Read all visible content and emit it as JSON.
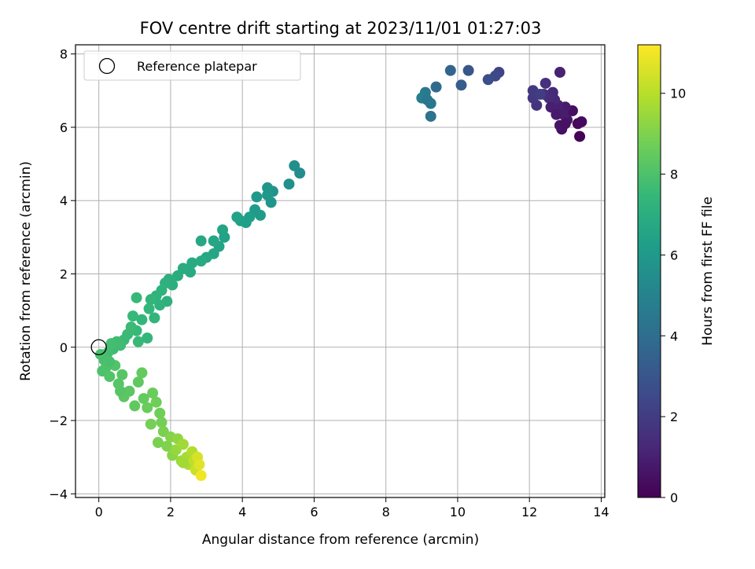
{
  "chart_data": {
    "type": "scatter",
    "title": "FOV centre drift starting at 2023/11/01 01:27:03",
    "xlabel": "Angular distance from reference (arcmin)",
    "ylabel": "Rotation from reference (arcmin)",
    "xlim": [
      -0.65,
      14.1
    ],
    "ylim": [
      -4.1,
      8.25
    ],
    "xticks": [
      0,
      2,
      4,
      6,
      8,
      10,
      12,
      14
    ],
    "yticks": [
      -4,
      -2,
      0,
      2,
      4,
      6,
      8
    ],
    "xtick_labels": [
      "0",
      "2",
      "4",
      "6",
      "8",
      "10",
      "12",
      "14"
    ],
    "ytick_labels": [
      "−4",
      "−2",
      "0",
      "2",
      "4",
      "6",
      "8"
    ],
    "grid": true,
    "legend": {
      "placement": "top-left",
      "entries": [
        "Reference platepar"
      ]
    },
    "reference_point": {
      "x": 0,
      "y": 0,
      "marker": "open-circle",
      "color": "#000000"
    },
    "colorbar": {
      "label": "Hours from first FF file",
      "range": [
        0,
        11.2
      ],
      "ticks": [
        0,
        2,
        4,
        6,
        8,
        10
      ],
      "tick_labels": [
        "0",
        "2",
        "4",
        "6",
        "8",
        "10"
      ],
      "colormap": "viridis",
      "stops": [
        "#440154",
        "#482878",
        "#3e4989",
        "#31688e",
        "#26828e",
        "#1f9e89",
        "#35b779",
        "#6ece58",
        "#b5de2b",
        "#fde725"
      ]
    },
    "points": [
      [
        13.4,
        5.75,
        0.1
      ],
      [
        13.35,
        6.1,
        0.2
      ],
      [
        13.45,
        6.15,
        0.3
      ],
      [
        13.2,
        6.45,
        0.4
      ],
      [
        12.9,
        5.95,
        0.5
      ],
      [
        12.85,
        6.05,
        0.6
      ],
      [
        13.05,
        6.2,
        0.7
      ],
      [
        13.0,
        6.55,
        0.8
      ],
      [
        12.95,
        6.35,
        0.9
      ],
      [
        12.8,
        6.6,
        1.0
      ],
      [
        12.85,
        7.5,
        1.1
      ],
      [
        12.7,
        6.75,
        1.2
      ],
      [
        12.65,
        6.95,
        1.3
      ],
      [
        12.55,
        6.8,
        1.4
      ],
      [
        12.4,
        6.9,
        1.5
      ],
      [
        12.45,
        7.2,
        1.6
      ],
      [
        12.2,
        6.6,
        1.7
      ],
      [
        12.1,
        6.8,
        1.8
      ],
      [
        12.1,
        7.0,
        1.9
      ],
      [
        12.3,
        6.9,
        2.0
      ],
      [
        11.15,
        7.5,
        2.3
      ],
      [
        11.05,
        7.4,
        2.5
      ],
      [
        10.85,
        7.3,
        2.7
      ],
      [
        10.3,
        7.55,
        3.0
      ],
      [
        10.1,
        7.15,
        3.3
      ],
      [
        9.8,
        7.55,
        3.6
      ],
      [
        9.4,
        7.1,
        3.9
      ],
      [
        9.25,
        6.3,
        4.2
      ],
      [
        9.25,
        6.65,
        4.4
      ],
      [
        9.1,
        6.95,
        4.6
      ],
      [
        9.0,
        6.8,
        4.8
      ],
      [
        5.6,
        4.75,
        5.4
      ],
      [
        5.45,
        4.95,
        5.5
      ],
      [
        5.3,
        4.45,
        5.6
      ],
      [
        4.85,
        4.25,
        5.7
      ],
      [
        4.8,
        3.95,
        5.8
      ],
      [
        4.7,
        4.35,
        5.9
      ],
      [
        4.7,
        4.15,
        6.0
      ],
      [
        4.4,
        4.1,
        6.0
      ],
      [
        4.35,
        3.75,
        6.1
      ],
      [
        4.2,
        3.55,
        6.2
      ],
      [
        4.1,
        3.4,
        6.3
      ],
      [
        3.95,
        3.45,
        6.3
      ],
      [
        3.85,
        3.55,
        6.4
      ],
      [
        3.5,
        3.0,
        6.4
      ],
      [
        3.45,
        3.2,
        6.5
      ],
      [
        3.35,
        2.75,
        6.5
      ],
      [
        3.2,
        2.9,
        6.6
      ],
      [
        3.2,
        2.55,
        6.6
      ],
      [
        3.0,
        2.45,
        6.7
      ],
      [
        2.85,
        2.9,
        6.7
      ],
      [
        2.85,
        2.35,
        6.8
      ],
      [
        2.55,
        2.05,
        6.8
      ],
      [
        2.35,
        2.15,
        6.9
      ],
      [
        2.2,
        1.95,
        6.9
      ],
      [
        2.05,
        1.7,
        7.0
      ],
      [
        1.95,
        1.85,
        7.0
      ],
      [
        1.85,
        1.75,
        7.1
      ],
      [
        1.9,
        1.25,
        7.1
      ],
      [
        1.75,
        1.55,
        7.2
      ],
      [
        1.7,
        1.15,
        7.2
      ],
      [
        1.6,
        1.4,
        7.2
      ],
      [
        1.55,
        0.8,
        7.3
      ],
      [
        1.45,
        1.3,
        7.3
      ],
      [
        1.4,
        1.05,
        7.4
      ],
      [
        1.35,
        0.25,
        7.4
      ],
      [
        1.2,
        0.75,
        7.4
      ],
      [
        1.05,
        1.35,
        7.5
      ],
      [
        1.05,
        0.45,
        7.5
      ],
      [
        0.95,
        0.85,
        7.5
      ],
      [
        0.9,
        0.55,
        7.6
      ],
      [
        0.8,
        0.35,
        7.6
      ],
      [
        0.7,
        0.2,
        7.6
      ],
      [
        0.6,
        0.05,
        7.7
      ],
      [
        0.5,
        0.15,
        7.7
      ],
      [
        0.4,
        -0.05,
        7.7
      ],
      [
        0.35,
        0.1,
        7.8
      ],
      [
        0.25,
        -0.15,
        7.8
      ],
      [
        0.15,
        -0.35,
        7.9
      ],
      [
        0.05,
        -0.2,
        7.9
      ],
      [
        0.1,
        -0.65,
        8.0
      ],
      [
        0.2,
        -0.55,
        8.0
      ],
      [
        0.3,
        -0.8,
        8.1
      ],
      [
        0.45,
        -0.5,
        8.1
      ],
      [
        0.55,
        -1.0,
        8.2
      ],
      [
        0.65,
        -0.75,
        8.2
      ],
      [
        0.7,
        -1.35,
        8.3
      ],
      [
        0.85,
        -1.2,
        8.3
      ],
      [
        1.0,
        -1.6,
        8.4
      ],
      [
        1.1,
        -0.95,
        8.4
      ],
      [
        1.2,
        -0.7,
        8.5
      ],
      [
        1.25,
        -1.4,
        8.5
      ],
      [
        1.35,
        -1.65,
        8.6
      ],
      [
        1.5,
        -1.25,
        8.6
      ],
      [
        1.6,
        -1.5,
        8.7
      ],
      [
        1.7,
        -1.8,
        8.7
      ],
      [
        1.75,
        -2.05,
        8.8
      ],
      [
        1.65,
        -2.6,
        8.9
      ],
      [
        1.8,
        -2.3,
        8.9
      ],
      [
        1.9,
        -2.7,
        9.0
      ],
      [
        2.0,
        -2.45,
        9.1
      ],
      [
        2.05,
        -2.95,
        9.2
      ],
      [
        2.2,
        -2.5,
        9.3
      ],
      [
        2.15,
        -2.8,
        9.4
      ],
      [
        2.3,
        -3.1,
        9.5
      ],
      [
        2.35,
        -2.65,
        9.6
      ],
      [
        2.45,
        -3.0,
        9.7
      ],
      [
        2.5,
        -3.2,
        9.8
      ],
      [
        2.6,
        -2.85,
        9.9
      ],
      [
        2.65,
        -3.1,
        10.1
      ],
      [
        2.7,
        -3.35,
        10.3
      ],
      [
        2.75,
        -3.0,
        10.5
      ],
      [
        2.8,
        -3.2,
        10.7
      ],
      [
        2.85,
        -3.5,
        11.0
      ],
      [
        2.35,
        -3.15,
        9.6
      ],
      [
        1.45,
        -2.1,
        8.8
      ],
      [
        0.6,
        -1.2,
        8.2
      ],
      [
        0.3,
        -0.4,
        7.9
      ],
      [
        1.1,
        0.15,
        7.5
      ],
      [
        2.6,
        2.3,
        6.8
      ],
      [
        4.5,
        3.6,
        6.1
      ],
      [
        12.6,
        6.55,
        1.0
      ],
      [
        13.0,
        6.1,
        0.5
      ],
      [
        12.75,
        6.35,
        0.8
      ],
      [
        9.15,
        6.75,
        4.5
      ]
    ]
  }
}
